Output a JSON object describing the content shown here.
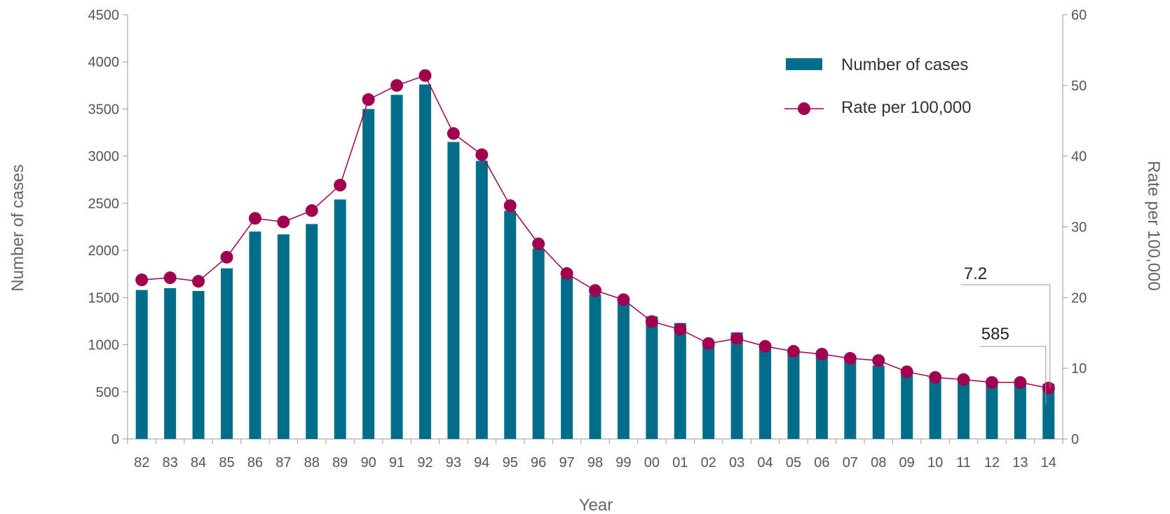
{
  "chart_data": {
    "type": "bar",
    "title": "",
    "categories": [
      "82",
      "83",
      "84",
      "85",
      "86",
      "87",
      "88",
      "89",
      "90",
      "91",
      "92",
      "93",
      "94",
      "95",
      "96",
      "97",
      "98",
      "99",
      "00",
      "01",
      "02",
      "03",
      "04",
      "05",
      "06",
      "07",
      "08",
      "09",
      "10",
      "11",
      "12",
      "13",
      "14"
    ],
    "xlabel": "Year",
    "ylabel": "Number of cases",
    "y2label": "Rate per 100,000",
    "ylim": [
      0,
      4500
    ],
    "y2lim": [
      0,
      60
    ],
    "yticks": [
      0,
      500,
      1000,
      1500,
      2000,
      2500,
      3000,
      3500,
      4000,
      4500
    ],
    "y2ticks": [
      0,
      10,
      20,
      30,
      40,
      50,
      60
    ],
    "grid": false,
    "legend_position": "top-right",
    "series": [
      {
        "name": "Number of cases",
        "type": "bar",
        "axis": "left",
        "color": "#006d8a",
        "values": [
          1580,
          1600,
          1570,
          1810,
          2200,
          2170,
          2280,
          2540,
          3500,
          3650,
          3760,
          3150,
          2950,
          2420,
          2020,
          1720,
          1530,
          1450,
          1300,
          1230,
          1020,
          1130,
          1000,
          940,
          880,
          850,
          780,
          720,
          620,
          600,
          590,
          580,
          585
        ]
      },
      {
        "name": "Rate per 100,000",
        "type": "line",
        "axis": "right",
        "color": "#a0004f",
        "values": [
          22.5,
          22.8,
          22.3,
          25.7,
          31.2,
          30.7,
          32.3,
          35.9,
          48.0,
          50.0,
          51.4,
          43.2,
          40.2,
          33.0,
          27.6,
          23.4,
          21.0,
          19.7,
          16.6,
          15.5,
          13.5,
          14.2,
          13.1,
          12.4,
          12.0,
          11.4,
          11.1,
          9.5,
          8.7,
          8.4,
          8.0,
          8.0,
          7.2
        ]
      }
    ],
    "annotations": [
      {
        "text": "7.2",
        "series": "Rate per 100,000",
        "category": "14"
      },
      {
        "text": "585",
        "series": "Number of cases",
        "category": "14"
      }
    ]
  }
}
